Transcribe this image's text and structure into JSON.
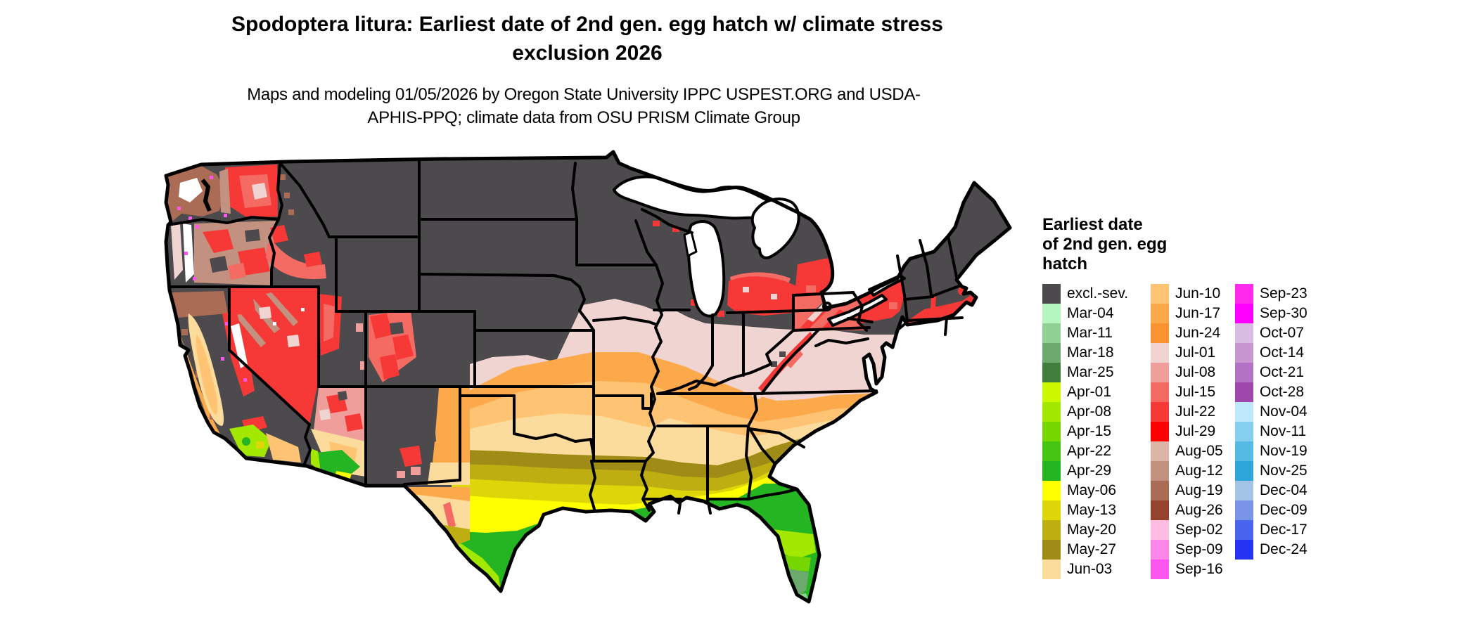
{
  "title": "Spodoptera litura: Earliest date of 2nd gen. egg hatch w/ climate stress exclusion 2026",
  "subtitle": "Maps and modeling 01/05/2026 by Oregon State University IPPC USPEST.ORG and USDA-APHIS-PPQ; climate data from OSU PRISM Climate Group",
  "map": {
    "region": "Continental United States",
    "kind": "choropleth raster of earliest 2nd generation egg hatch dates"
  },
  "legend": {
    "title_lines": [
      "Earliest date",
      "of 2nd gen. egg",
      "hatch"
    ],
    "columns": [
      {
        "entries": [
          {
            "label": "excl.-sev.",
            "color": "#4d4a4d"
          },
          {
            "label": "Mar-04",
            "color": "#b5f6bf"
          },
          {
            "label": "Mar-11",
            "color": "#90d092"
          },
          {
            "label": "Mar-18",
            "color": "#6baa6c"
          },
          {
            "label": "Mar-25",
            "color": "#3f7f3b"
          },
          {
            "label": "Apr-01",
            "color": "#ccf900"
          },
          {
            "label": "Apr-08",
            "color": "#a3e800"
          },
          {
            "label": "Apr-15",
            "color": "#75d600"
          },
          {
            "label": "Apr-22",
            "color": "#45c614"
          },
          {
            "label": "Apr-29",
            "color": "#25b522"
          },
          {
            "label": "May-06",
            "color": "#ffff00"
          },
          {
            "label": "May-13",
            "color": "#ded608"
          },
          {
            "label": "May-20",
            "color": "#bfae12"
          },
          {
            "label": "May-27",
            "color": "#9e8c16"
          },
          {
            "label": "Jun-03",
            "color": "#fcdc9c"
          }
        ]
      },
      {
        "entries": [
          {
            "label": "Jun-10",
            "color": "#ffc473"
          },
          {
            "label": "Jun-17",
            "color": "#fba94b"
          },
          {
            "label": "Jun-24",
            "color": "#fb9230"
          },
          {
            "label": "Jul-01",
            "color": "#f0d4d2"
          },
          {
            "label": "Jul-08",
            "color": "#f09e9b"
          },
          {
            "label": "Jul-15",
            "color": "#f46b64"
          },
          {
            "label": "Jul-22",
            "color": "#f63836"
          },
          {
            "label": "Jul-29",
            "color": "#fe0000"
          },
          {
            "label": "Aug-05",
            "color": "#dcb4a8"
          },
          {
            "label": "Aug-12",
            "color": "#c29180"
          },
          {
            "label": "Aug-19",
            "color": "#ab6c55"
          },
          {
            "label": "Aug-26",
            "color": "#95432e"
          },
          {
            "label": "Sep-02",
            "color": "#febce2"
          },
          {
            "label": "Sep-09",
            "color": "#fc86ea"
          },
          {
            "label": "Sep-16",
            "color": "#fd55f0"
          }
        ]
      },
      {
        "entries": [
          {
            "label": "Sep-23",
            "color": "#ff2aee"
          },
          {
            "label": "Sep-30",
            "color": "#ff00ff"
          },
          {
            "label": "Oct-07",
            "color": "#d9bce2"
          },
          {
            "label": "Oct-14",
            "color": "#c795d0"
          },
          {
            "label": "Oct-21",
            "color": "#b273c4"
          },
          {
            "label": "Oct-28",
            "color": "#a047ae"
          },
          {
            "label": "Nov-04",
            "color": "#bce8fa"
          },
          {
            "label": "Nov-11",
            "color": "#85cfee"
          },
          {
            "label": "Nov-19",
            "color": "#55bbe4"
          },
          {
            "label": "Nov-25",
            "color": "#2ea6d9"
          },
          {
            "label": "Dec-04",
            "color": "#a3c4e4"
          },
          {
            "label": "Dec-09",
            "color": "#7a95e8"
          },
          {
            "label": "Dec-17",
            "color": "#4b64ee"
          },
          {
            "label": "Dec-24",
            "color": "#2634f2"
          }
        ]
      }
    ]
  }
}
